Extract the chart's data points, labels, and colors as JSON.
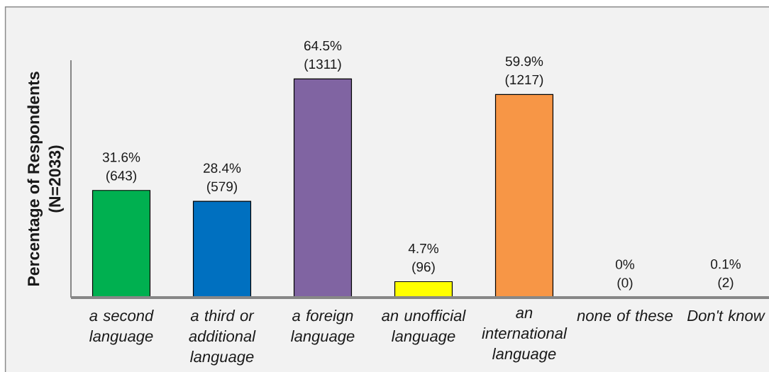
{
  "chart_data": {
    "type": "bar",
    "ylabel": "Percentage of Respondents (N=2033)",
    "categories": [
      "a second language",
      "a third or additional language",
      "a foreign language",
      "an unofficial language",
      "an international language",
      "none of these",
      "Don't know"
    ],
    "values": [
      31.6,
      28.4,
      64.5,
      4.7,
      59.9,
      0,
      0.1
    ],
    "colors": [
      "#00b050",
      "#0070c0",
      "#8064a2",
      "#ffff00",
      "#f79646",
      "#4bacc6",
      "#c0504d"
    ],
    "value_labels": [
      "31.6% (643)",
      "28.4% (579)",
      "64.5% (1311)",
      "4.7% (96)",
      "59.9% (1217)",
      "0% (0)",
      "0.1% (2)"
    ],
    "ylim": [
      0,
      70
    ],
    "tick_labels": "x"
  }
}
